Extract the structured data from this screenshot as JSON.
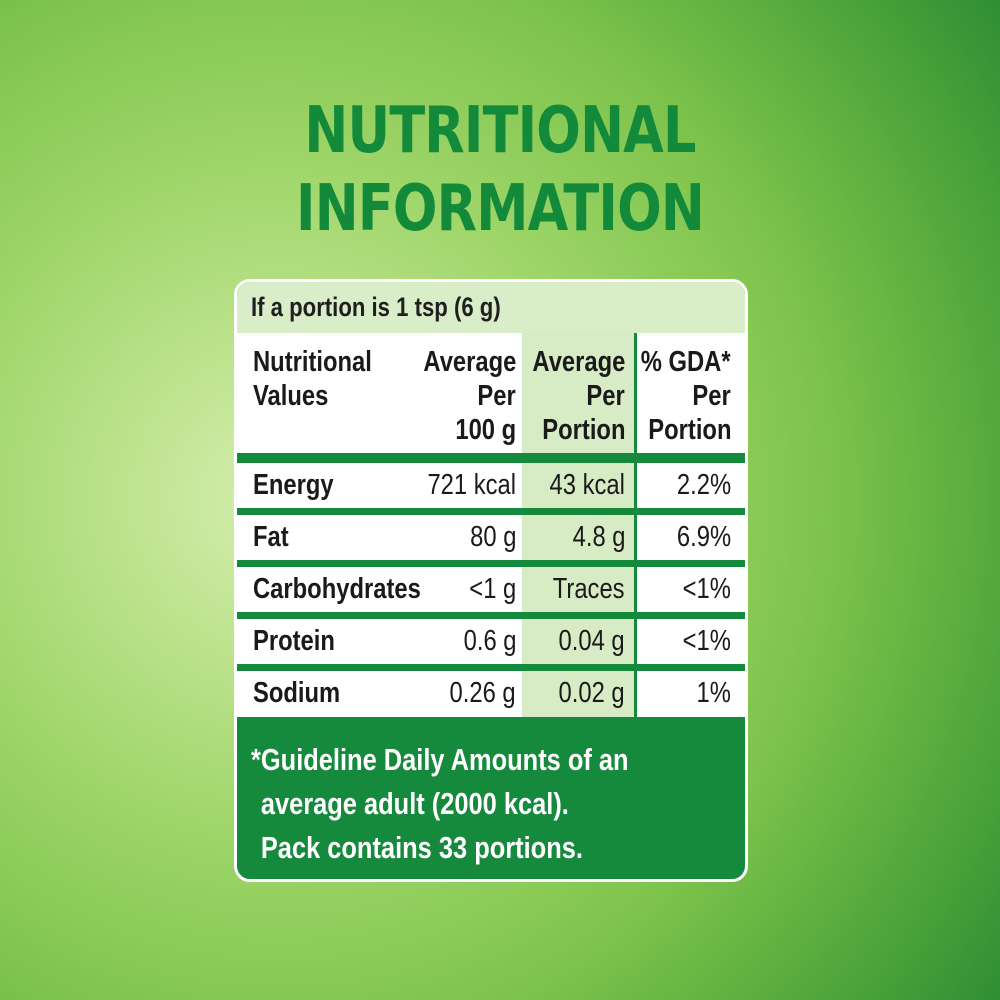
{
  "title": {
    "line1": "NUTRITIONAL",
    "line2": "INFORMATION"
  },
  "portion_note": "If a portion is 1 tsp (6 g)",
  "table": {
    "headers": {
      "col1": [
        "Nutritional",
        "Values"
      ],
      "col2": [
        "Average",
        "Per",
        "100 g"
      ],
      "col3": [
        "Average",
        "Per",
        "Portion"
      ],
      "col4": [
        "% GDA*",
        "Per",
        "Portion"
      ]
    },
    "rows": [
      {
        "name": "Energy",
        "per100g": "721 kcal",
        "perPortion": "43 kcal",
        "gda": "2.2%"
      },
      {
        "name": "Fat",
        "per100g": "80 g",
        "perPortion": "4.8 g",
        "gda": "6.9%"
      },
      {
        "name": "Carbohydrates",
        "per100g": "<1 g",
        "perPortion": "Traces",
        "gda": "<1%"
      },
      {
        "name": "Protein",
        "per100g": "0.6 g",
        "perPortion": "0.04 g",
        "gda": "<1%"
      },
      {
        "name": "Sodium",
        "per100g": "0.26 g",
        "perPortion": "0.02 g",
        "gda": "1%"
      }
    ]
  },
  "footnote": {
    "line1": "*Guideline Daily Amounts of an",
    "line2": "average adult (2000 kcal).",
    "line3": "Pack contains 33 portions."
  },
  "colors": {
    "title_green": "#138a3a",
    "panel_green": "#168a3c",
    "light_green_cell": "#d7ebc5"
  }
}
